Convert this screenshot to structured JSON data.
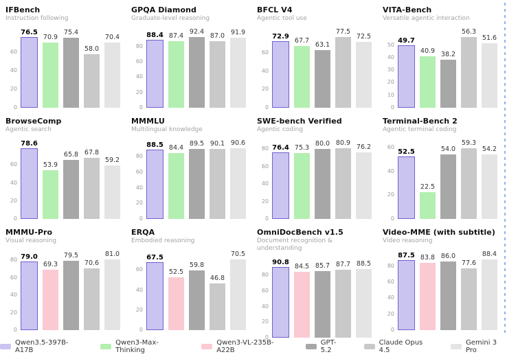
{
  "colors": {
    "purple_fill": "#cac4f1",
    "purple_border": "#6f61ce",
    "green": "#b3efb0",
    "pink": "#fbc9d2",
    "dark_gray": "#a7a7a7",
    "mid_gray": "#c9c9c9",
    "light_gray": "#e4e4e4",
    "title": "#111111",
    "subtitle": "#a3a3a3",
    "tick": "#999999",
    "value_label": "#333333",
    "edge_artifact_blue": "#6b96e8"
  },
  "legend": [
    {
      "label": "Qwen3.5-397B-A17B",
      "color": "purple"
    },
    {
      "label": "Qwen3-Max-Thinking",
      "color": "green"
    },
    {
      "label": "Qwen3-VL-235B-A22B",
      "color": "pink"
    },
    {
      "label": "GPT-5.2",
      "color": "dark_gray"
    },
    {
      "label": "Claude Opus 4.5",
      "color": "mid_gray"
    },
    {
      "label": "Gemini 3 Pro",
      "color": "light_gray"
    }
  ],
  "chart_data": [
    {
      "type": "bar",
      "title": "IFBench",
      "subtitle": "Instruction following",
      "yticks": [
        0,
        20,
        40,
        60
      ],
      "grid": false,
      "series": [
        {
          "name": "Qwen3.5-397B-A17B",
          "value": 76.5,
          "color": "purple"
        },
        {
          "name": "Qwen3-Max-Thinking",
          "value": 70.9,
          "color": "green"
        },
        {
          "name": "GPT-5.2",
          "value": 75.4,
          "color": "dark_gray"
        },
        {
          "name": "Claude Opus 4.5",
          "value": 58.0,
          "color": "mid_gray"
        },
        {
          "name": "Gemini 3 Pro",
          "value": 70.4,
          "color": "light_gray"
        }
      ]
    },
    {
      "type": "bar",
      "title": "GPQA Diamond",
      "subtitle": "Graduate-level reasoning",
      "yticks": [
        0,
        20,
        40,
        60,
        80
      ],
      "grid": false,
      "series": [
        {
          "name": "Qwen3.5-397B-A17B",
          "value": 88.4,
          "color": "purple"
        },
        {
          "name": "Qwen3-Max-Thinking",
          "value": 87.4,
          "color": "green"
        },
        {
          "name": "GPT-5.2",
          "value": 92.4,
          "color": "dark_gray"
        },
        {
          "name": "Claude Opus 4.5",
          "value": 87.0,
          "color": "mid_gray"
        },
        {
          "name": "Gemini 3 Pro",
          "value": 91.9,
          "color": "light_gray"
        }
      ]
    },
    {
      "type": "bar",
      "title": "BFCL V4",
      "subtitle": "Agentic tool use",
      "yticks": [
        0,
        20,
        40,
        60
      ],
      "grid": false,
      "series": [
        {
          "name": "Qwen3.5-397B-A17B",
          "value": 72.9,
          "color": "purple"
        },
        {
          "name": "Qwen3-Max-Thinking",
          "value": 67.7,
          "color": "green"
        },
        {
          "name": "GPT-5.2",
          "value": 63.1,
          "color": "dark_gray"
        },
        {
          "name": "Claude Opus 4.5",
          "value": 77.5,
          "color": "mid_gray"
        },
        {
          "name": "Gemini 3 Pro",
          "value": 72.5,
          "color": "light_gray"
        }
      ]
    },
    {
      "type": "bar",
      "title": "VITA-Bench",
      "subtitle": "Versatile agentic interaction",
      "yticks": [
        0,
        10,
        20,
        30,
        40,
        50
      ],
      "grid": false,
      "series": [
        {
          "name": "Qwen3.5-397B-A17B",
          "value": 49.7,
          "color": "purple"
        },
        {
          "name": "Qwen3-Max-Thinking",
          "value": 40.9,
          "color": "green"
        },
        {
          "name": "GPT-5.2",
          "value": 38.2,
          "color": "dark_gray"
        },
        {
          "name": "Claude Opus 4.5",
          "value": 56.3,
          "color": "mid_gray"
        },
        {
          "name": "Gemini 3 Pro",
          "value": 51.6,
          "color": "light_gray"
        }
      ]
    },
    {
      "type": "bar",
      "title": "BrowseComp",
      "subtitle": "Agentic search",
      "yticks": [
        0,
        20,
        40,
        60
      ],
      "grid": false,
      "series": [
        {
          "name": "Qwen3.5-397B-A17B",
          "value": 78.6,
          "color": "purple"
        },
        {
          "name": "Qwen3-Max-Thinking",
          "value": 53.9,
          "color": "green"
        },
        {
          "name": "GPT-5.2",
          "value": 65.8,
          "color": "dark_gray"
        },
        {
          "name": "Claude Opus 4.5",
          "value": 67.8,
          "color": "mid_gray"
        },
        {
          "name": "Gemini 3 Pro",
          "value": 59.2,
          "color": "light_gray"
        }
      ]
    },
    {
      "type": "bar",
      "title": "MMMLU",
      "subtitle": "Multilingual knowledge",
      "yticks": [
        0,
        20,
        40,
        60,
        80
      ],
      "grid": false,
      "series": [
        {
          "name": "Qwen3.5-397B-A17B",
          "value": 88.5,
          "color": "purple"
        },
        {
          "name": "Qwen3-Max-Thinking",
          "value": 84.4,
          "color": "green"
        },
        {
          "name": "GPT-5.2",
          "value": 89.5,
          "color": "dark_gray"
        },
        {
          "name": "Claude Opus 4.5",
          "value": 90.1,
          "color": "mid_gray"
        },
        {
          "name": "Gemini 3 Pro",
          "value": 90.6,
          "color": "light_gray"
        }
      ]
    },
    {
      "type": "bar",
      "title": "SWE-bench Verified",
      "subtitle": "Agentic coding",
      "yticks": [
        0,
        20,
        40,
        60,
        80
      ],
      "grid": false,
      "series": [
        {
          "name": "Qwen3.5-397B-A17B",
          "value": 76.4,
          "color": "purple"
        },
        {
          "name": "Qwen3-Max-Thinking",
          "value": 75.3,
          "color": "green"
        },
        {
          "name": "GPT-5.2",
          "value": 80.0,
          "color": "dark_gray"
        },
        {
          "name": "Claude Opus 4.5",
          "value": 80.9,
          "color": "mid_gray"
        },
        {
          "name": "Gemini 3 Pro",
          "value": 76.2,
          "color": "light_gray"
        }
      ]
    },
    {
      "type": "bar",
      "title": "Terminal-Bench 2",
      "subtitle": "Agentic terminal coding",
      "yticks": [
        0,
        20,
        40,
        60
      ],
      "grid": false,
      "series": [
        {
          "name": "Qwen3.5-397B-A17B",
          "value": 52.5,
          "color": "purple"
        },
        {
          "name": "Qwen3-Max-Thinking",
          "value": 22.5,
          "color": "green"
        },
        {
          "name": "GPT-5.2",
          "value": 54.0,
          "color": "dark_gray"
        },
        {
          "name": "Claude Opus 4.5",
          "value": 59.3,
          "color": "mid_gray"
        },
        {
          "name": "Gemini 3 Pro",
          "value": 54.2,
          "color": "light_gray"
        }
      ]
    },
    {
      "type": "bar",
      "title": "MMMU-Pro",
      "subtitle": "Visual reasoning",
      "yticks": [
        0,
        20,
        40,
        60,
        80
      ],
      "grid": false,
      "series": [
        {
          "name": "Qwen3.5-397B-A17B",
          "value": 79.0,
          "color": "purple"
        },
        {
          "name": "Qwen3-VL-235B-A22B",
          "value": 69.3,
          "color": "pink"
        },
        {
          "name": "GPT-5.2",
          "value": 79.5,
          "color": "dark_gray"
        },
        {
          "name": "Claude Opus 4.5",
          "value": 70.6,
          "color": "mid_gray"
        },
        {
          "name": "Gemini 3 Pro",
          "value": 81.0,
          "color": "light_gray"
        }
      ]
    },
    {
      "type": "bar",
      "title": "ERQA",
      "subtitle": "Embodied reasoning",
      "yticks": [
        0,
        20,
        40,
        60
      ],
      "grid": false,
      "series": [
        {
          "name": "Qwen3.5-397B-A17B",
          "value": 67.5,
          "color": "purple"
        },
        {
          "name": "Qwen3-VL-235B-A22B",
          "value": 52.5,
          "color": "pink"
        },
        {
          "name": "GPT-5.2",
          "value": 59.8,
          "color": "dark_gray"
        },
        {
          "name": "Claude Opus 4.5",
          "value": 46.8,
          "color": "mid_gray"
        },
        {
          "name": "Gemini 3 Pro",
          "value": 70.5,
          "color": "light_gray"
        }
      ]
    },
    {
      "type": "bar",
      "title": "OmniDocBench v1.5",
      "subtitle": "Document recognition & understanding",
      "yticks": [
        0,
        20,
        40,
        60,
        80
      ],
      "grid": false,
      "series": [
        {
          "name": "Qwen3.5-397B-A17B",
          "value": 90.8,
          "color": "purple"
        },
        {
          "name": "Qwen3-VL-235B-A22B",
          "value": 84.5,
          "color": "pink"
        },
        {
          "name": "GPT-5.2",
          "value": 85.7,
          "color": "dark_gray"
        },
        {
          "name": "Claude Opus 4.5",
          "value": 87.7,
          "color": "mid_gray"
        },
        {
          "name": "Gemini 3 Pro",
          "value": 88.5,
          "color": "light_gray"
        }
      ]
    },
    {
      "type": "bar",
      "title": "Video-MME (with subtitle)",
      "subtitle": "Video reasoning",
      "yticks": [
        0,
        20,
        40,
        60,
        80
      ],
      "grid": false,
      "series": [
        {
          "name": "Qwen3.5-397B-A17B",
          "value": 87.5,
          "color": "purple"
        },
        {
          "name": "Qwen3-VL-235B-A22B",
          "value": 83.8,
          "color": "pink"
        },
        {
          "name": "GPT-5.2",
          "value": 86.0,
          "color": "dark_gray"
        },
        {
          "name": "Claude Opus 4.5",
          "value": 77.6,
          "color": "mid_gray"
        },
        {
          "name": "Gemini 3 Pro",
          "value": 88.4,
          "color": "light_gray"
        }
      ]
    }
  ]
}
